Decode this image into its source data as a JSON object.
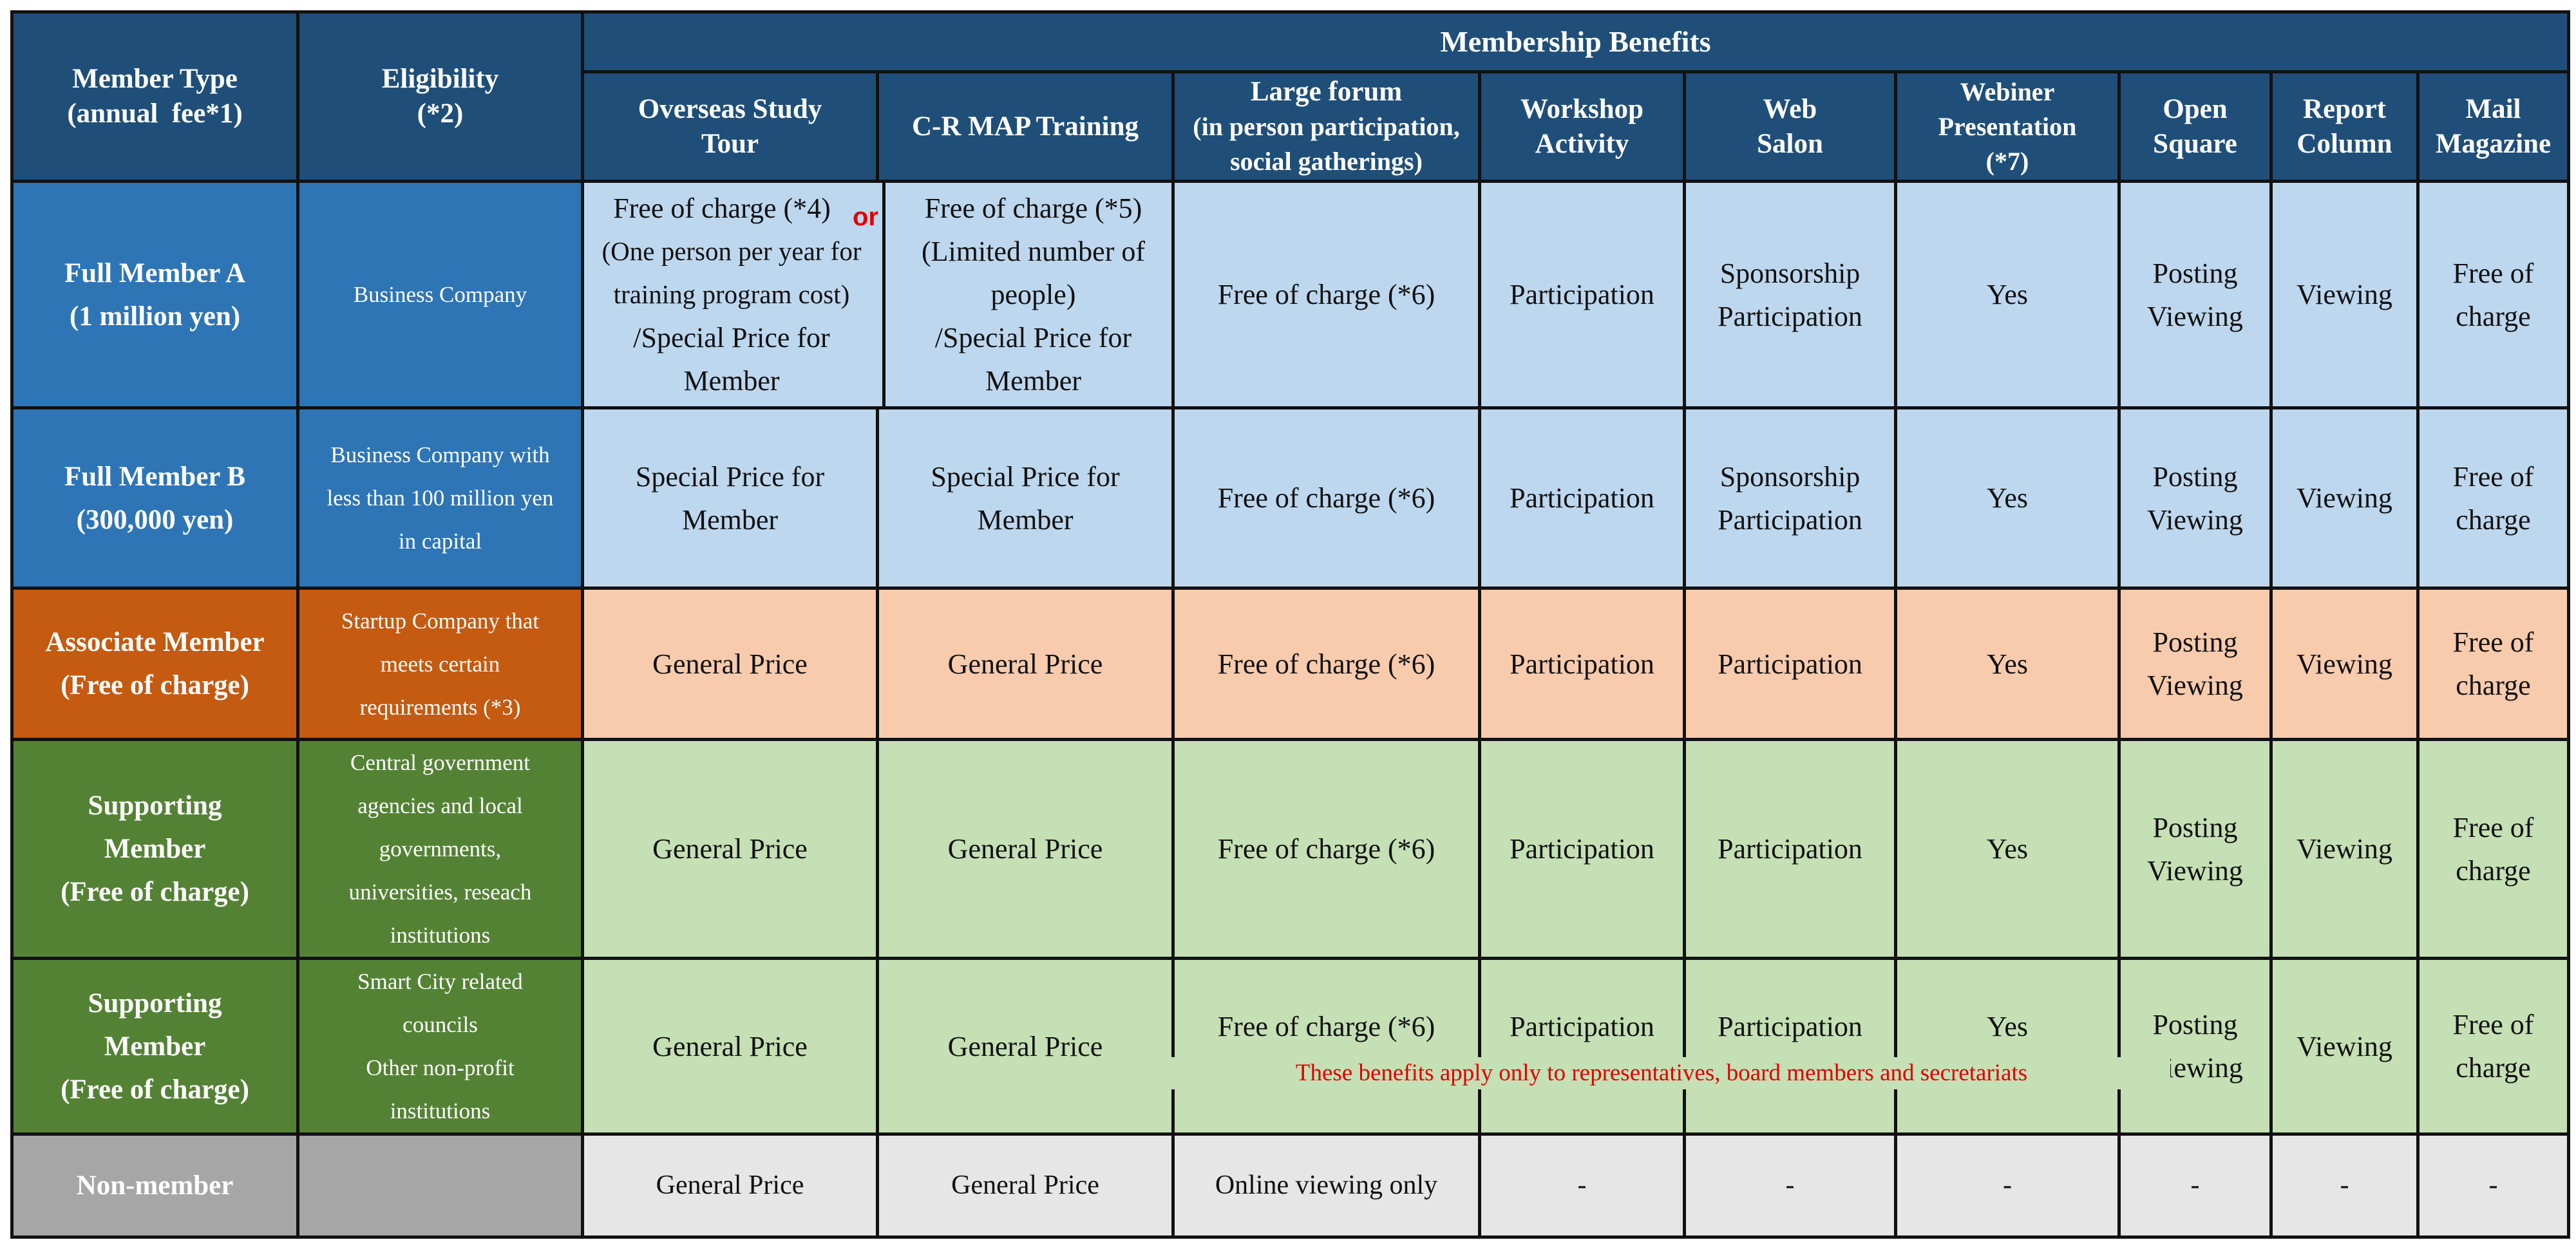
{
  "header": {
    "member_type": "Member Type",
    "member_type_note": "(annual  fee*1)",
    "eligibility": "Eligibility",
    "eligibility_note": "(*2)",
    "benefits": "Membership Benefits",
    "columns": {
      "overseas_1": "Overseas Study",
      "overseas_2": "Tour",
      "crmap": "C-R MAP Training",
      "forum_1": "Large forum",
      "forum_2": "(in person participation,",
      "forum_3": "social gatherings)",
      "workshop_1": "Workshop",
      "workshop_2": "Activity",
      "web_1": "Web",
      "web_2": "Salon",
      "webiner_1": "Webiner",
      "webiner_2": "Presentation",
      "webiner_3": "(*7)",
      "open_1": "Open",
      "open_2": "Square",
      "report_1": "Report",
      "report_2": "Column",
      "mail_1": "Mail",
      "mail_2": "Magazine"
    }
  },
  "rows": {
    "a": {
      "type_1": "Full Member A",
      "type_2": "(1 million yen)",
      "eligibility": "Business Company",
      "overseas_1": "Free of charge (*4)",
      "overseas_2": "(One person per year for",
      "overseas_3": "training program cost)",
      "overseas_4": "/Special Price for",
      "overseas_5": "Member",
      "or": "or",
      "crmap_1": "Free of charge (*5)",
      "crmap_2": "(Limited number of",
      "crmap_3": "people)",
      "crmap_4": "/Special Price for",
      "crmap_5": "Member",
      "forum": "Free of charge (*6)",
      "workshop": "Participation",
      "web_1": "Sponsorship",
      "web_2": "Participation",
      "webiner": "Yes",
      "open_1": "Posting",
      "open_2": "Viewing",
      "report": "Viewing",
      "mail_1": "Free of",
      "mail_2": "charge"
    },
    "b": {
      "type_1": "Full Member B",
      "type_2": "(300,000 yen)",
      "eligibility_1": "Business Company with",
      "eligibility_2": "less than 100 million yen",
      "eligibility_3": "in capital",
      "overseas_1": "Special Price for",
      "overseas_2": "Member",
      "crmap_1": "Special Price for",
      "crmap_2": "Member",
      "forum": "Free of charge (*6)",
      "workshop": "Participation",
      "web_1": "Sponsorship",
      "web_2": "Participation",
      "webiner": "Yes",
      "open_1": "Posting",
      "open_2": "Viewing",
      "report": "Viewing",
      "mail_1": "Free of",
      "mail_2": "charge"
    },
    "c": {
      "type_1": "Associate Member",
      "type_2": "(Free of charge)",
      "eligibility_1": "Startup Company that",
      "eligibility_2": "meets certain",
      "eligibility_3": "requirements (*3)",
      "overseas": "General Price",
      "crmap": "General Price",
      "forum": "Free of charge (*6)",
      "workshop": "Participation",
      "web": "Participation",
      "webiner": "Yes",
      "open_1": "Posting",
      "open_2": "Viewing",
      "report": "Viewing",
      "mail_1": "Free of",
      "mail_2": "charge"
    },
    "d": {
      "type_1": "Supporting",
      "type_2": "Member",
      "type_3": "(Free of charge)",
      "eligibility_1": "Central government",
      "eligibility_2": "agencies and local",
      "eligibility_3": "governments,",
      "eligibility_4": "universities, reseach",
      "eligibility_5": "institutions",
      "overseas": "General Price",
      "crmap": "General Price",
      "forum": "Free of charge (*6)",
      "workshop": "Participation",
      "web": "Participation",
      "webiner": "Yes",
      "open_1": "Posting",
      "open_2": "Viewing",
      "report": "Viewing",
      "mail_1": "Free of",
      "mail_2": "charge"
    },
    "e": {
      "type_1": "Supporting",
      "type_2": "Member",
      "type_3": "(Free of charge)",
      "eligibility_1": "Smart City related",
      "eligibility_2": "councils",
      "eligibility_3": "Other non-profit",
      "eligibility_4": "institutions",
      "overseas": "General Price",
      "crmap": "General Price",
      "forum": "Free of charge (*6)",
      "workshop": "Participation",
      "web": "Participation",
      "webiner": "Yes",
      "open_1": "Posting",
      "open_2": "Viewing",
      "report": "Viewing",
      "mail_1": "Free of",
      "mail_2": "charge",
      "note": "These benefits apply only to representatives, board members and secretariats"
    },
    "f": {
      "type": "Non-member",
      "eligibility": "",
      "overseas": "General Price",
      "crmap": "General Price",
      "forum": "Online viewing only",
      "workshop": "-",
      "web": "-",
      "webiner": "-",
      "open": "-",
      "report": "-",
      "mail": "-"
    }
  },
  "colors": {
    "header_bg": "#1f4e79",
    "full_member_label": "#2e75b6",
    "full_member_cell": "#bdd7ee",
    "associate_label": "#c55a11",
    "associate_cell": "#f8cbad",
    "supporting_label": "#548235",
    "supporting_cell": "#c5e0b4",
    "nonmember_label": "#a6a6a6",
    "nonmember_cell": "#e7e6e6",
    "accent_red": "#e00000"
  }
}
